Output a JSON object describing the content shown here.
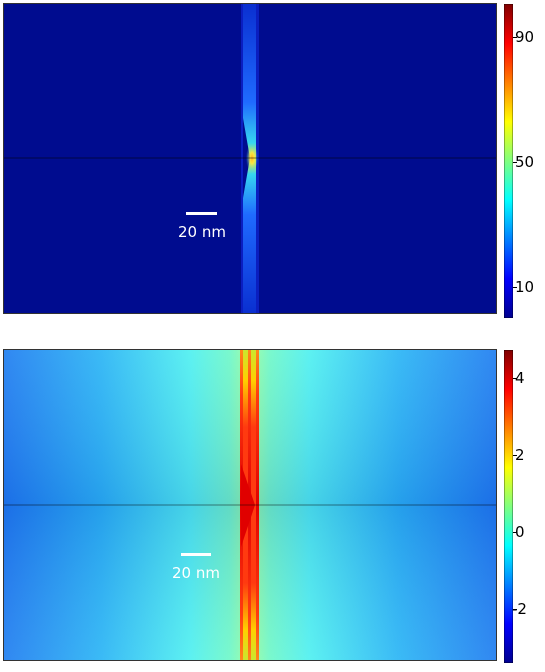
{
  "top_panel": {
    "scale_bar_label": "20 nm",
    "colorbar_ticks": [
      "90",
      "50",
      "10"
    ],
    "colormap": "jet"
  },
  "bottom_panel": {
    "scale_bar_label": "20 nm",
    "colorbar_ticks": [
      "4",
      "2",
      "0",
      "-2"
    ],
    "colormap": "jet"
  }
}
